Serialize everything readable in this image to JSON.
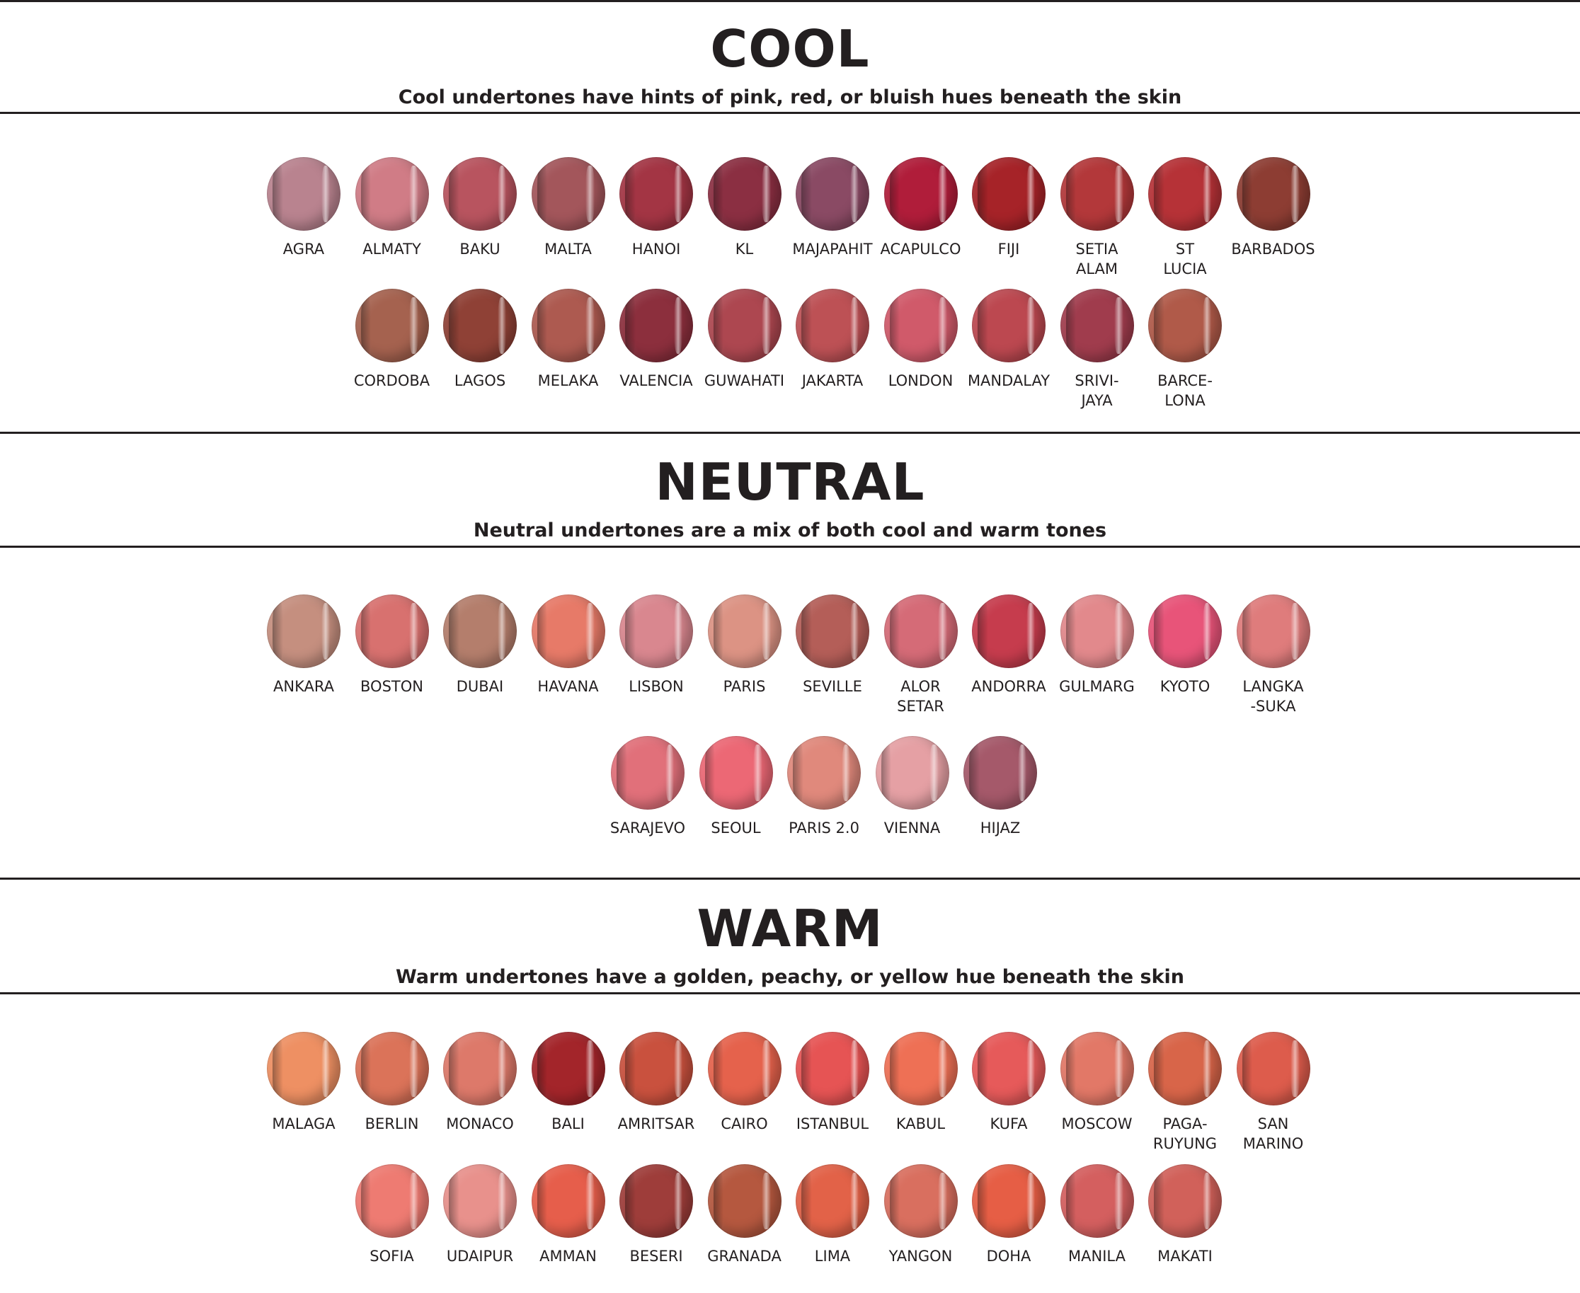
{
  "sections": [
    {
      "title": "COOL",
      "subtitle": "Cool undertones have hints of pink, red, or bluish hues beneath the skin",
      "rows": [
        [
          {
            "name": "AGRA",
            "color": "#b9838f"
          },
          {
            "name": "ALMATY",
            "color": "#d07c86"
          },
          {
            "name": "BAKU",
            "color": "#b8545f"
          },
          {
            "name": "MALTA",
            "color": "#a3565b"
          },
          {
            "name": "HANOI",
            "color": "#a33544"
          },
          {
            "name": "KL",
            "color": "#8b2f42"
          },
          {
            "name": "MAJAPAHIT",
            "color": "#8a4a64"
          },
          {
            "name": "ACAPULCO",
            "color": "#b01d3a"
          },
          {
            "name": "FIJI",
            "color": "#a62328"
          },
          {
            "name": "SETIA\nALAM",
            "color": "#b3383a"
          },
          {
            "name": "ST\nLUCIA",
            "color": "#b63237"
          },
          {
            "name": "BARBADOS",
            "color": "#8d3d33"
          }
        ],
        [
          {
            "name": "CORDOBA",
            "color": "#a5624f"
          },
          {
            "name": "LAGOS",
            "color": "#8f4136"
          },
          {
            "name": "MELAKA",
            "color": "#ad5a50"
          },
          {
            "name": "VALENCIA",
            "color": "#8c2f3d"
          },
          {
            "name": "GUWAHATI",
            "color": "#ad4750"
          },
          {
            "name": "JAKARTA",
            "color": "#bd5155"
          },
          {
            "name": "LONDON",
            "color": "#d05a6a"
          },
          {
            "name": "MANDALAY",
            "color": "#bc4850"
          },
          {
            "name": "SRIVI-\nJAYA",
            "color": "#a03c4d"
          },
          {
            "name": "BARCE-\nLONA",
            "color": "#b05a49"
          }
        ]
      ]
    },
    {
      "title": "NEUTRAL",
      "subtitle": "Neutral undertones are a mix of both cool and warm tones",
      "rows": [
        [
          {
            "name": "ANKARA",
            "color": "#c58f7f"
          },
          {
            "name": "BOSTON",
            "color": "#d8716f"
          },
          {
            "name": "DUBAI",
            "color": "#b47e6c"
          },
          {
            "name": "HAVANA",
            "color": "#e77a68"
          },
          {
            "name": "LISBON",
            "color": "#d9878f"
          },
          {
            "name": "PARIS",
            "color": "#dc9384"
          },
          {
            "name": "SEVILLE",
            "color": "#b45e58"
          },
          {
            "name": "ALOR\nSETAR",
            "color": "#d56b77"
          },
          {
            "name": "ANDORRA",
            "color": "#c63c4d"
          },
          {
            "name": "GULMARG",
            "color": "#e2898c"
          },
          {
            "name": "KYOTO",
            "color": "#e85479"
          },
          {
            "name": "LANGKA\n-SUKA",
            "color": "#df7c7c"
          }
        ],
        [
          {
            "name": "SARAJEVO",
            "color": "#e1707a"
          },
          {
            "name": "SEOUL",
            "color": "#ec6875"
          },
          {
            "name": "PARIS 2.0",
            "color": "#e0897c"
          },
          {
            "name": "VIENNA",
            "color": "#e5a0a4"
          },
          {
            "name": "HIJAZ",
            "color": "#a5596a"
          }
        ]
      ]
    },
    {
      "title": "WARM",
      "subtitle": "Warm undertones have a golden, peachy, or yellow hue beneath the skin",
      "rows": [
        [
          {
            "name": "MALAGA",
            "color": "#ee9063"
          },
          {
            "name": "BERLIN",
            "color": "#db7359"
          },
          {
            "name": "MONACO",
            "color": "#dd796a"
          },
          {
            "name": "BALI",
            "color": "#a3252a"
          },
          {
            "name": "AMRITSAR",
            "color": "#c9513e"
          },
          {
            "name": "CAIRO",
            "color": "#e5624c"
          },
          {
            "name": "ISTANBUL",
            "color": "#e65454"
          },
          {
            "name": "KABUL",
            "color": "#ee7055"
          },
          {
            "name": "KUFA",
            "color": "#e65a5a"
          },
          {
            "name": "MOSCOW",
            "color": "#e27867"
          },
          {
            "name": "PAGA-\nRUYUNG",
            "color": "#d86549"
          },
          {
            "name": "SAN\nMARINO",
            "color": "#dd5c4c"
          }
        ],
        [
          {
            "name": "SOFIA",
            "color": "#ee7b72"
          },
          {
            "name": "UDAIPUR",
            "color": "#e8918c"
          },
          {
            "name": "AMMAN",
            "color": "#e65e4b"
          },
          {
            "name": "BESERI",
            "color": "#9e3d3a"
          },
          {
            "name": "GRANADA",
            "color": "#b5583f"
          },
          {
            "name": "LIMA",
            "color": "#e26248"
          },
          {
            "name": "YANGON",
            "color": "#d96f5f"
          },
          {
            "name": "DOHA",
            "color": "#e65e45"
          },
          {
            "name": "MANILA",
            "color": "#d45f5f"
          },
          {
            "name": "MAKATI",
            "color": "#d1615a"
          }
        ]
      ]
    }
  ]
}
